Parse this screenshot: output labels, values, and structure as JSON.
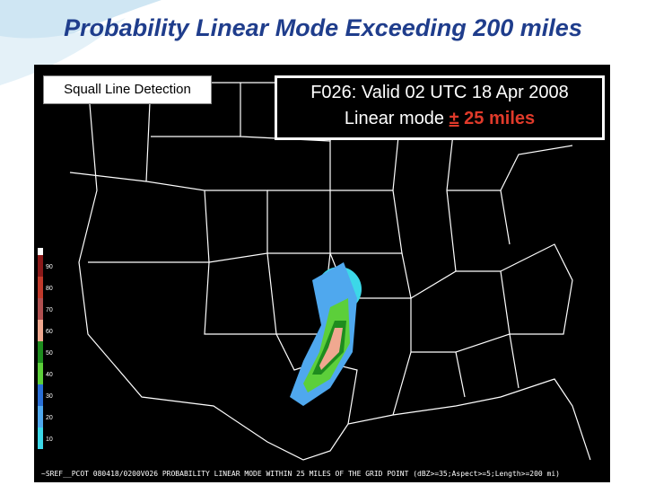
{
  "header": {
    "title": "Probability Linear Mode Exceeding 200 miles"
  },
  "map": {
    "label": "Squall Line Detection",
    "valid_box": {
      "line1": "F026: Valid 02 UTC 18 Apr 2008",
      "line2_prefix": "Linear mode",
      "line2_symbol": "±",
      "line2_emphasis": "25 miles"
    },
    "colorbar": [
      {
        "label": "90",
        "color": "#8b1a1a"
      },
      {
        "label": "80",
        "color": "#c0392b"
      },
      {
        "label": "70",
        "color": "#b05050"
      },
      {
        "label": "60",
        "color": "#f0a890"
      },
      {
        "label": "50",
        "color": "#1e8c1e"
      },
      {
        "label": "40",
        "color": "#5ccf3a"
      },
      {
        "label": "30",
        "color": "#2a6fd6"
      },
      {
        "label": "20",
        "color": "#4fa8ee"
      },
      {
        "label": "10",
        "color": "#3cd8e8"
      }
    ],
    "caption": "~SREF__PCOT 080418/0200V026 PROBABILITY LINEAR MODE WITHIN 25 MILES OF THE GRID POINT (dBZ>=35;Aspect>=5;Length>=200 mi)"
  }
}
